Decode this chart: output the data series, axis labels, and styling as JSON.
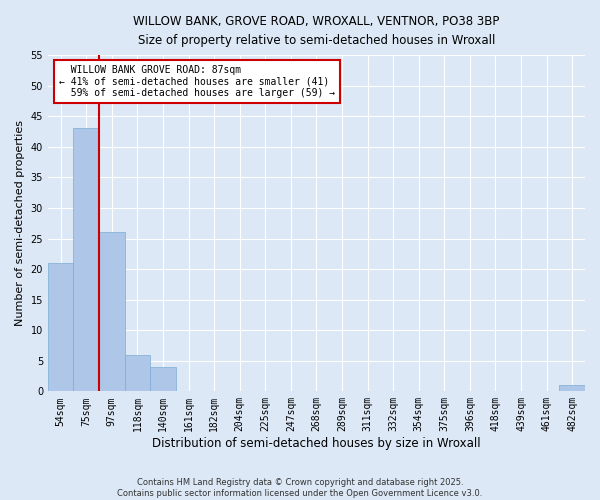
{
  "title1": "WILLOW BANK, GROVE ROAD, WROXALL, VENTNOR, PO38 3BP",
  "title2": "Size of property relative to semi-detached houses in Wroxall",
  "xlabel": "Distribution of semi-detached houses by size in Wroxall",
  "ylabel": "Number of semi-detached properties",
  "categories": [
    "54sqm",
    "75sqm",
    "97sqm",
    "118sqm",
    "140sqm",
    "161sqm",
    "182sqm",
    "204sqm",
    "225sqm",
    "247sqm",
    "268sqm",
    "289sqm",
    "311sqm",
    "332sqm",
    "354sqm",
    "375sqm",
    "396sqm",
    "418sqm",
    "439sqm",
    "461sqm",
    "482sqm"
  ],
  "values": [
    21,
    43,
    26,
    6,
    4,
    0,
    0,
    0,
    0,
    0,
    0,
    0,
    0,
    0,
    0,
    0,
    0,
    0,
    0,
    0,
    1
  ],
  "bar_color": "#aec6e8",
  "bar_edge_color": "#7aadd4",
  "property_label": "WILLOW BANK GROVE ROAD: 87sqm",
  "smaller_pct": 41,
  "larger_pct": 59,
  "smaller_count": 41,
  "larger_count": 59,
  "vline_x_index": 1,
  "vline_color": "#cc0000",
  "ylim": [
    0,
    55
  ],
  "yticks": [
    0,
    5,
    10,
    15,
    20,
    25,
    30,
    35,
    40,
    45,
    50,
    55
  ],
  "background_color": "#dce8f5",
  "grid_color": "#ffffff",
  "footnote": "Contains HM Land Registry data © Crown copyright and database right 2025.\nContains public sector information licensed under the Open Government Licence v3.0."
}
